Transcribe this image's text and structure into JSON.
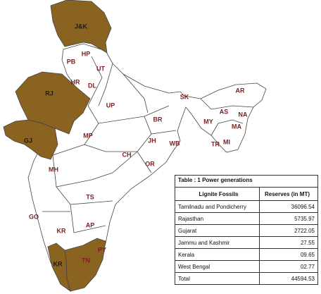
{
  "map": {
    "regions": [
      {
        "label": "J&K"
      },
      {
        "label": "HP"
      },
      {
        "label": "PB"
      },
      {
        "label": "UT"
      },
      {
        "label": "HR"
      },
      {
        "label": "DL"
      },
      {
        "label": "RJ"
      },
      {
        "label": "UP"
      },
      {
        "label": "SK"
      },
      {
        "label": "AR"
      },
      {
        "label": "AS"
      },
      {
        "label": "NA"
      },
      {
        "label": "BR"
      },
      {
        "label": "MY"
      },
      {
        "label": "MA"
      },
      {
        "label": "TR"
      },
      {
        "label": "MI"
      },
      {
        "label": "GJ"
      },
      {
        "label": "MP"
      },
      {
        "label": "JH"
      },
      {
        "label": "WB"
      },
      {
        "label": "CH"
      },
      {
        "label": "OR"
      },
      {
        "label": "MH"
      },
      {
        "label": "TS"
      },
      {
        "label": "GO"
      },
      {
        "label": "KR"
      },
      {
        "label": "AP"
      },
      {
        "label": "PY"
      },
      {
        "label": "KR"
      },
      {
        "label": "TN"
      }
    ]
  },
  "table": {
    "title": "Table : 1  Power generations",
    "columns": [
      "Lignite Fossils",
      "Reserves  (in MT)"
    ],
    "rows": [
      [
        "Tamilnadu and Pondicherry",
        "36096.54"
      ],
      [
        "Rajasthan",
        "5735.97"
      ],
      [
        "Gujarat",
        "2722.05"
      ],
      [
        "Jammu and Kashmir",
        "27.55"
      ],
      [
        "Kerala",
        "09.65"
      ],
      [
        "West Bengal",
        "02.77"
      ],
      [
        "Total",
        "44594.53"
      ]
    ]
  }
}
